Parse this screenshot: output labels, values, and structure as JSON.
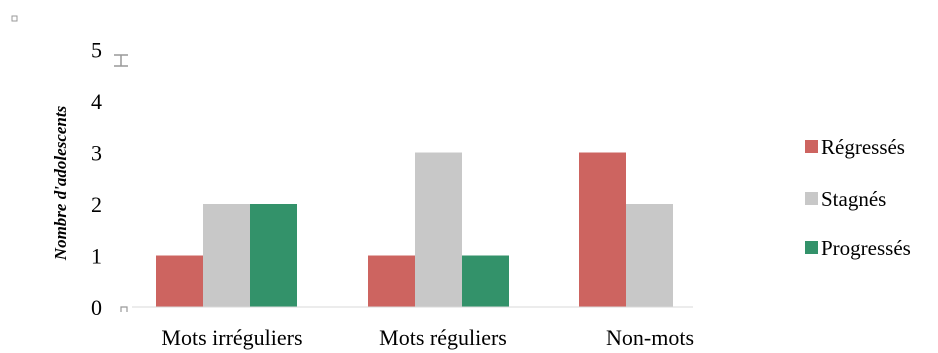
{
  "chart_data": {
    "type": "bar",
    "categories": [
      "Mots irréguliers",
      "Mots réguliers",
      "Non-mots"
    ],
    "series": [
      {
        "name": "Régressés",
        "color": "#cd6460",
        "values": [
          1,
          1,
          3
        ]
      },
      {
        "name": "Stagnés",
        "color": "#c8c8c8",
        "values": [
          2,
          3,
          2
        ]
      },
      {
        "name": "Progressés",
        "color": "#33926a",
        "values": [
          2,
          1,
          null
        ]
      }
    ],
    "title": "",
    "xlabel": "",
    "ylabel": "Nombre d'adolescents",
    "ylim": [
      0,
      5
    ],
    "yticks": [
      "0",
      "1",
      "2",
      "3",
      "4",
      "5"
    ],
    "grid": false,
    "legend_position": "right"
  }
}
